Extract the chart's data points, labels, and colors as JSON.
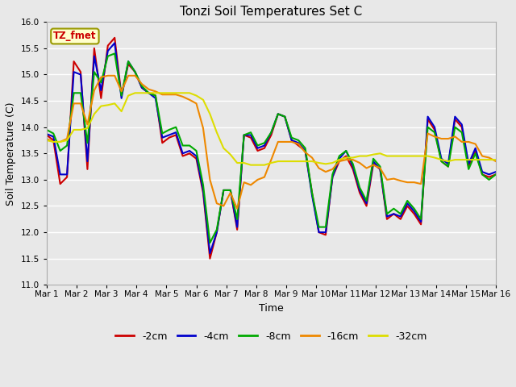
{
  "title": "Tonzi Soil Temperatures Set C",
  "xlabel": "Time",
  "ylabel": "Soil Temperature (C)",
  "ylim": [
    11.0,
    16.0
  ],
  "yticks": [
    11.0,
    11.5,
    12.0,
    12.5,
    13.0,
    13.5,
    14.0,
    14.5,
    15.0,
    15.5,
    16.0
  ],
  "x_labels": [
    "Mar 1",
    "Mar 2",
    "Mar 3",
    "Mar 4",
    "Mar 5",
    "Mar 6",
    "Mar 7",
    "Mar 8",
    "Mar 9",
    "Mar 10",
    "Mar 11",
    "Mar 12",
    "Mar 13",
    "Mar 14",
    "Mar 15",
    "Mar 16"
  ],
  "series_order": [
    "-2cm",
    "-4cm",
    "-8cm",
    "-16cm",
    "-32cm"
  ],
  "series": {
    "-2cm": {
      "color": "#cc0000",
      "lw": 1.5,
      "y": [
        13.85,
        13.75,
        12.92,
        13.05,
        15.25,
        15.05,
        13.2,
        15.5,
        14.55,
        15.55,
        15.7,
        14.6,
        15.2,
        15.05,
        14.75,
        14.65,
        14.6,
        13.7,
        13.8,
        13.85,
        13.45,
        13.5,
        13.4,
        12.75,
        11.5,
        12.0,
        12.8,
        12.8,
        12.05,
        13.85,
        13.8,
        13.55,
        13.6,
        13.85,
        14.25,
        14.2,
        13.75,
        13.65,
        13.55,
        12.75,
        12.0,
        11.95,
        13.05,
        13.35,
        13.45,
        13.2,
        12.75,
        12.5,
        13.3,
        13.2,
        12.25,
        12.35,
        12.25,
        12.5,
        12.35,
        12.15,
        14.15,
        13.95,
        13.35,
        13.25,
        14.15,
        14.0,
        13.25,
        13.55,
        13.1,
        13.05,
        13.1
      ]
    },
    "-4cm": {
      "color": "#0000cc",
      "lw": 1.5,
      "y": [
        13.87,
        13.82,
        13.1,
        13.1,
        15.05,
        15.0,
        13.35,
        15.35,
        14.7,
        15.45,
        15.6,
        14.55,
        15.25,
        15.05,
        14.75,
        14.65,
        14.55,
        13.8,
        13.85,
        13.9,
        13.5,
        13.55,
        13.45,
        12.8,
        11.6,
        12.0,
        12.8,
        12.8,
        12.1,
        13.85,
        13.85,
        13.6,
        13.65,
        13.9,
        14.25,
        14.2,
        13.75,
        13.7,
        13.55,
        12.7,
        12.0,
        12.0,
        13.05,
        13.4,
        13.55,
        13.25,
        12.8,
        12.55,
        13.35,
        13.2,
        12.3,
        12.35,
        12.3,
        12.55,
        12.4,
        12.2,
        14.2,
        14.0,
        13.4,
        13.3,
        14.2,
        14.05,
        13.3,
        13.6,
        13.15,
        13.1,
        13.15
      ]
    },
    "-8cm": {
      "color": "#00aa00",
      "lw": 1.5,
      "y": [
        13.95,
        13.88,
        13.55,
        13.65,
        14.65,
        14.65,
        13.7,
        15.05,
        14.85,
        15.35,
        15.4,
        14.6,
        15.25,
        15.05,
        14.78,
        14.65,
        14.6,
        13.88,
        13.95,
        14.0,
        13.65,
        13.65,
        13.55,
        12.9,
        11.8,
        12.05,
        12.8,
        12.8,
        12.25,
        13.85,
        13.9,
        13.65,
        13.7,
        13.9,
        14.25,
        14.2,
        13.8,
        13.75,
        13.6,
        12.75,
        12.1,
        12.1,
        13.1,
        13.45,
        13.55,
        13.3,
        12.85,
        12.6,
        13.4,
        13.25,
        12.35,
        12.45,
        12.35,
        12.6,
        12.45,
        12.25,
        14.0,
        13.9,
        13.35,
        13.25,
        14.0,
        13.9,
        13.2,
        13.5,
        13.1,
        13.0,
        13.1
      ]
    },
    "-16cm": {
      "color": "#ee8800",
      "lw": 1.5,
      "y": [
        13.78,
        13.72,
        13.72,
        13.78,
        14.45,
        14.45,
        14.05,
        14.7,
        14.95,
        14.98,
        14.98,
        14.68,
        14.98,
        14.98,
        14.82,
        14.72,
        14.68,
        14.62,
        14.62,
        14.62,
        14.58,
        14.52,
        14.45,
        13.98,
        13.0,
        12.55,
        12.5,
        12.75,
        12.45,
        12.95,
        12.9,
        13.0,
        13.05,
        13.38,
        13.72,
        13.72,
        13.72,
        13.68,
        13.52,
        13.42,
        13.22,
        13.15,
        13.2,
        13.35,
        13.38,
        13.38,
        13.32,
        13.22,
        13.28,
        13.22,
        13.0,
        13.02,
        12.98,
        12.95,
        12.95,
        12.92,
        13.88,
        13.82,
        13.78,
        13.78,
        13.82,
        13.72,
        13.72,
        13.68,
        13.45,
        13.42,
        13.35
      ]
    },
    "-32cm": {
      "color": "#dddd00",
      "lw": 1.5,
      "y": [
        13.75,
        13.72,
        13.72,
        13.75,
        13.95,
        13.95,
        13.98,
        14.25,
        14.4,
        14.42,
        14.45,
        14.3,
        14.6,
        14.65,
        14.65,
        14.65,
        14.65,
        14.65,
        14.65,
        14.65,
        14.65,
        14.65,
        14.6,
        14.52,
        14.25,
        13.9,
        13.6,
        13.48,
        13.32,
        13.32,
        13.28,
        13.28,
        13.28,
        13.32,
        13.35,
        13.35,
        13.35,
        13.35,
        13.35,
        13.35,
        13.32,
        13.3,
        13.32,
        13.38,
        13.42,
        13.42,
        13.45,
        13.45,
        13.48,
        13.5,
        13.45,
        13.45,
        13.45,
        13.45,
        13.45,
        13.45,
        13.45,
        13.42,
        13.38,
        13.35,
        13.38,
        13.38,
        13.38,
        13.38,
        13.38,
        13.38,
        13.38
      ]
    }
  },
  "n_points": 67,
  "bg_color": "#e8e8e8",
  "annotation_text": "TZ_fmet",
  "annotation_color": "#cc0000",
  "annotation_bg": "#ffffcc",
  "annotation_border": "#999900"
}
